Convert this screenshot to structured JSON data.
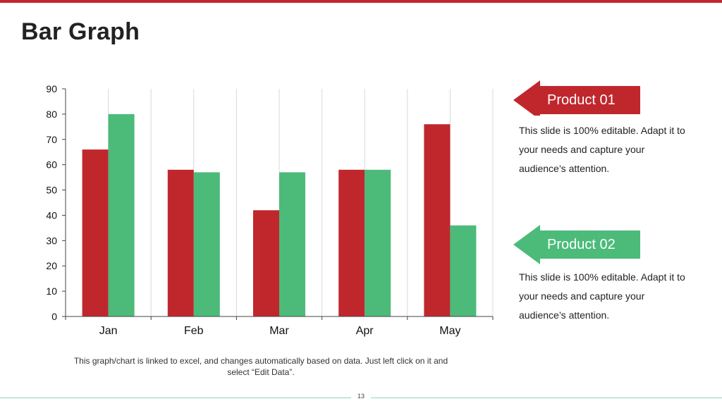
{
  "slide": {
    "title": "Bar Graph",
    "footnote": "This graph/chart is linked to excel, and changes automatically based on data. Just left click on it and select “Edit Data”.",
    "page_number": "13",
    "accent_color": "#c0272d",
    "secondary_color": "#4cbb7a"
  },
  "callouts": [
    {
      "label": "Product 01",
      "description": "This slide is 100% editable. Adapt it to your needs and capture your audience’s attention.",
      "color": "#c0272d",
      "icon": "left-arrow-shape"
    },
    {
      "label": "Product 02",
      "description": "This slide is 100% editable. Adapt it to your needs and capture your audience’s attention.",
      "color": "#4cbb7a",
      "icon": "left-arrow-shape"
    }
  ],
  "chart_data": {
    "type": "bar",
    "categories": [
      "Jan",
      "Feb",
      "Mar",
      "Apr",
      "May"
    ],
    "series": [
      {
        "values": [
          66,
          58,
          42,
          58,
          76
        ],
        "color": "#c0272d"
      },
      {
        "values": [
          80,
          57,
          57,
          58,
          36
        ],
        "color": "#4cbb7a"
      }
    ],
    "ylim": [
      0,
      90
    ],
    "yticks": [
      0,
      10,
      20,
      30,
      40,
      50,
      60,
      70,
      80,
      90
    ],
    "grid": "vertical lines between categories",
    "legend": "none"
  }
}
